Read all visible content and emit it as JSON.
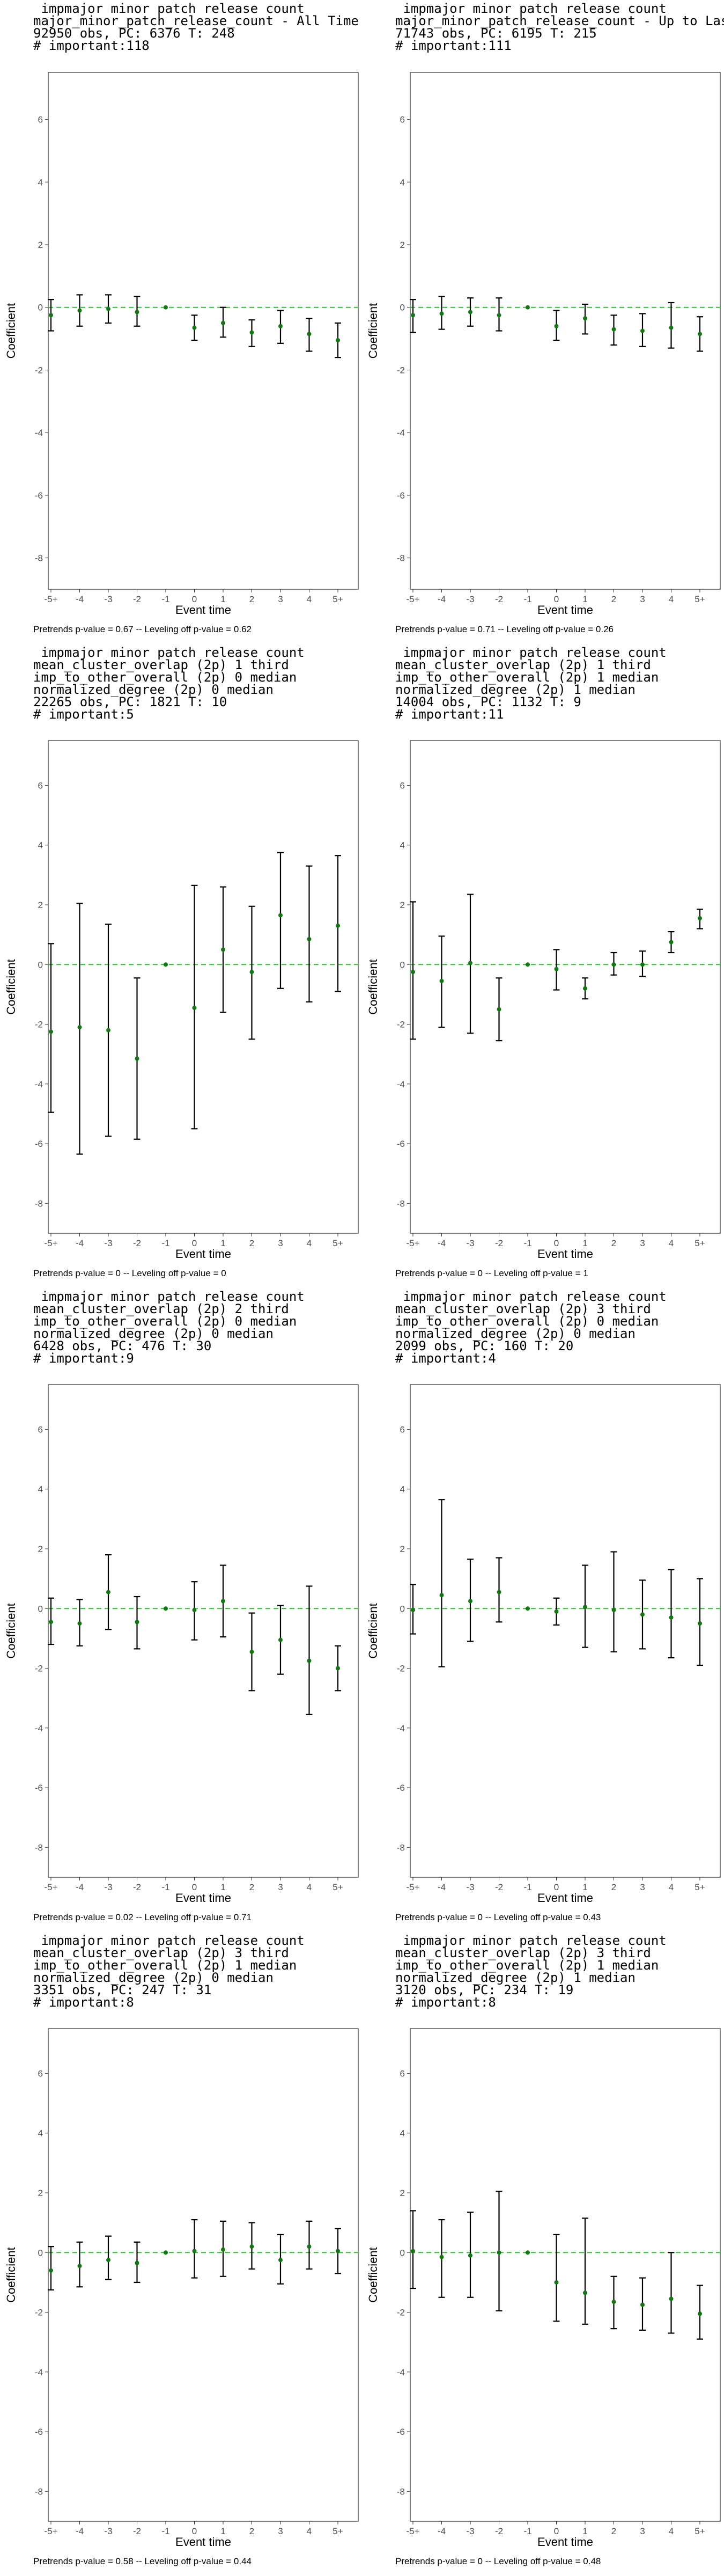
{
  "chart_data": [
    {
      "type": "scatter",
      "title_lines": [
        " impmajor minor patch release count",
        "major_minor_patch_release_count - All Time Periods",
        "92950 obs, PC: 6376 T: 248",
        "# important:118"
      ],
      "note": "Pretrends p-value = 0.67 -- Leveling off p-value = 0.62",
      "xlabel": "Event time",
      "ylabel": "Coefficient",
      "categories": [
        "-5+",
        "-4",
        "-3",
        "-2",
        "-1",
        "0",
        "1",
        "2",
        "3",
        "4",
        "5+"
      ],
      "ylim": [
        -9,
        7.5
      ],
      "yticks": [
        -8,
        -6,
        -4,
        -2,
        0,
        2,
        4,
        6
      ],
      "reference_line": 0,
      "estimates": [
        -0.25,
        -0.1,
        -0.05,
        -0.15,
        0,
        -0.65,
        -0.5,
        -0.8,
        -0.6,
        -0.85,
        -1.05
      ],
      "ci_lower": [
        -0.75,
        -0.6,
        -0.5,
        -0.6,
        0,
        -1.05,
        -0.95,
        -1.25,
        -1.15,
        -1.4,
        -1.6
      ],
      "ci_upper": [
        0.25,
        0.4,
        0.4,
        0.35,
        0,
        -0.25,
        0.0,
        -0.4,
        -0.1,
        -0.35,
        -0.5
      ]
    },
    {
      "type": "scatter",
      "title_lines": [
        " impmajor minor patch release count",
        "major_minor_patch_release_count - Up to Last Active Period",
        "71743 obs, PC: 6195 T: 215",
        "# important:111"
      ],
      "note": "Pretrends p-value = 0.71 -- Leveling off p-value = 0.26",
      "xlabel": "Event time",
      "ylabel": "Coefficient",
      "categories": [
        "-5+",
        "-4",
        "-3",
        "-2",
        "-1",
        "0",
        "1",
        "2",
        "3",
        "4",
        "5+"
      ],
      "ylim": [
        -9,
        7.5
      ],
      "yticks": [
        -8,
        -6,
        -4,
        -2,
        0,
        2,
        4,
        6
      ],
      "reference_line": 0,
      "estimates": [
        -0.25,
        -0.2,
        -0.15,
        -0.25,
        0,
        -0.6,
        -0.35,
        -0.7,
        -0.75,
        -0.65,
        -0.85
      ],
      "ci_lower": [
        -0.8,
        -0.7,
        -0.6,
        -0.75,
        0,
        -1.05,
        -0.85,
        -1.2,
        -1.25,
        -1.3,
        -1.4
      ],
      "ci_upper": [
        0.25,
        0.35,
        0.3,
        0.3,
        0,
        -0.1,
        0.1,
        -0.25,
        -0.2,
        0.15,
        -0.3
      ]
    },
    {
      "type": "scatter",
      "title_lines": [
        " impmajor minor patch release count",
        "mean_cluster_overlap (2p) 1 third",
        "imp_to_other_overall (2p) 0 median",
        "normalized_degree (2p) 0 median",
        "22265 obs, PC: 1821 T: 10",
        "# important:5"
      ],
      "note": "Pretrends p-value = 0 -- Leveling off p-value = 0",
      "xlabel": "Event time",
      "ylabel": "Coefficient",
      "categories": [
        "-5+",
        "-4",
        "-3",
        "-2",
        "-1",
        "0",
        "1",
        "2",
        "3",
        "4",
        "5+"
      ],
      "ylim": [
        -9,
        7.5
      ],
      "yticks": [
        -8,
        -6,
        -4,
        -2,
        0,
        2,
        4,
        6
      ],
      "reference_line": 0,
      "estimates": [
        -2.25,
        -2.1,
        -2.2,
        -3.15,
        0,
        -1.45,
        0.5,
        -0.25,
        1.65,
        0.85,
        1.3
      ],
      "ci_lower": [
        -4.95,
        -6.35,
        -5.75,
        -5.85,
        0,
        -5.5,
        -1.6,
        -2.5,
        -0.8,
        -1.25,
        -0.9
      ],
      "ci_upper": [
        0.7,
        2.05,
        1.35,
        -0.45,
        0,
        2.65,
        2.6,
        1.95,
        3.75,
        3.3,
        3.65
      ]
    },
    {
      "type": "scatter",
      "title_lines": [
        " impmajor minor patch release count",
        "mean_cluster_overlap (2p) 1 third",
        "imp_to_other_overall (2p) 1 median",
        "normalized_degree (2p) 1 median",
        "14004 obs, PC: 1132 T: 9",
        "# important:11"
      ],
      "note": "Pretrends p-value = 0 -- Leveling off p-value = 1",
      "xlabel": "Event time",
      "ylabel": "Coefficient",
      "categories": [
        "-5+",
        "-4",
        "-3",
        "-2",
        "-1",
        "0",
        "1",
        "2",
        "3",
        "4",
        "5+"
      ],
      "ylim": [
        -9,
        7.5
      ],
      "yticks": [
        -8,
        -6,
        -4,
        -2,
        0,
        2,
        4,
        6
      ],
      "reference_line": 0,
      "estimates": [
        -0.25,
        -0.55,
        0.05,
        -1.5,
        0,
        -0.15,
        -0.8,
        0.0,
        0.0,
        0.75,
        1.55
      ],
      "ci_lower": [
        -2.5,
        -2.1,
        -2.3,
        -2.55,
        0,
        -0.85,
        -1.15,
        -0.35,
        -0.4,
        0.4,
        1.2
      ],
      "ci_upper": [
        2.1,
        0.95,
        2.35,
        -0.45,
        0,
        0.5,
        -0.45,
        0.4,
        0.45,
        1.1,
        1.85
      ]
    },
    {
      "type": "scatter",
      "title_lines": [
        " impmajor minor patch release count",
        "mean_cluster_overlap (2p) 2 third",
        "imp_to_other_overall (2p) 0 median",
        "normalized_degree (2p) 0 median",
        "6428 obs, PC: 476 T: 30",
        "# important:9"
      ],
      "note": "Pretrends p-value = 0.02 -- Leveling off p-value = 0.71",
      "xlabel": "Event time",
      "ylabel": "Coefficient",
      "categories": [
        "-5+",
        "-4",
        "-3",
        "-2",
        "-1",
        "0",
        "1",
        "2",
        "3",
        "4",
        "5+"
      ],
      "ylim": [
        -9,
        7.5
      ],
      "yticks": [
        -8,
        -6,
        -4,
        -2,
        0,
        2,
        4,
        6
      ],
      "reference_line": 0,
      "estimates": [
        -0.45,
        -0.5,
        0.55,
        -0.45,
        0,
        -0.05,
        0.25,
        -1.45,
        -1.05,
        -1.75,
        -2.0
      ],
      "ci_lower": [
        -1.2,
        -1.25,
        -0.7,
        -1.35,
        0,
        -1.05,
        -0.95,
        -2.75,
        -2.2,
        -3.55,
        -2.75
      ],
      "ci_upper": [
        0.35,
        0.3,
        1.8,
        0.4,
        0,
        0.9,
        1.45,
        -0.15,
        0.1,
        0.75,
        -1.25
      ]
    },
    {
      "type": "scatter",
      "title_lines": [
        " impmajor minor patch release count",
        "mean_cluster_overlap (2p) 3 third",
        "imp_to_other_overall (2p) 0 median",
        "normalized_degree (2p) 0 median",
        "2099 obs, PC: 160 T: 20",
        "# important:4"
      ],
      "note": "Pretrends p-value = 0 -- Leveling off p-value = 0.43",
      "xlabel": "Event time",
      "ylabel": "Coefficient",
      "categories": [
        "-5+",
        "-4",
        "-3",
        "-2",
        "-1",
        "0",
        "1",
        "2",
        "3",
        "4",
        "5+"
      ],
      "ylim": [
        -9,
        7.5
      ],
      "yticks": [
        -8,
        -6,
        -4,
        -2,
        0,
        2,
        4,
        6
      ],
      "reference_line": 0,
      "estimates": [
        -0.05,
        0.45,
        0.25,
        0.55,
        0,
        -0.1,
        0.05,
        -0.05,
        -0.2,
        -0.3,
        -0.5
      ],
      "ci_lower": [
        -0.85,
        -1.95,
        -1.1,
        -0.45,
        0,
        -0.55,
        -1.3,
        -1.45,
        -1.35,
        -1.65,
        -1.9
      ],
      "ci_upper": [
        0.8,
        3.65,
        1.65,
        1.7,
        0,
        0.35,
        1.45,
        1.9,
        0.95,
        1.3,
        1.0
      ]
    },
    {
      "type": "scatter",
      "title_lines": [
        " impmajor minor patch release count",
        "mean_cluster_overlap (2p) 3 third",
        "imp_to_other_overall (2p) 1 median",
        "normalized_degree (2p) 0 median",
        "3351 obs, PC: 247 T: 31",
        "# important:8"
      ],
      "note": "Pretrends p-value = 0.58 -- Leveling off p-value = 0.44",
      "xlabel": "Event time",
      "ylabel": "Coefficient",
      "categories": [
        "-5+",
        "-4",
        "-3",
        "-2",
        "-1",
        "0",
        "1",
        "2",
        "3",
        "4",
        "5+"
      ],
      "ylim": [
        -9,
        7.5
      ],
      "yticks": [
        -8,
        -6,
        -4,
        -2,
        0,
        2,
        4,
        6
      ],
      "reference_line": 0,
      "estimates": [
        -0.6,
        -0.45,
        -0.25,
        -0.35,
        0,
        0.05,
        0.1,
        0.2,
        -0.25,
        0.2,
        0.05
      ],
      "ci_lower": [
        -1.25,
        -1.15,
        -0.9,
        -1.0,
        0,
        -0.85,
        -0.8,
        -0.55,
        -1.05,
        -0.55,
        -0.7
      ],
      "ci_upper": [
        0.2,
        0.35,
        0.55,
        0.35,
        0,
        1.1,
        1.05,
        1.0,
        0.6,
        1.05,
        0.8
      ]
    },
    {
      "type": "scatter",
      "title_lines": [
        " impmajor minor patch release count",
        "mean_cluster_overlap (2p) 3 third",
        "imp_to_other_overall (2p) 1 median",
        "normalized_degree (2p) 1 median",
        "3120 obs, PC: 234 T: 19",
        "# important:8"
      ],
      "note": "Pretrends p-value = 0 -- Leveling off p-value = 0.48",
      "xlabel": "Event time",
      "ylabel": "Coefficient",
      "categories": [
        "-5+",
        "-4",
        "-3",
        "-2",
        "-1",
        "0",
        "1",
        "2",
        "3",
        "4",
        "5+"
      ],
      "ylim": [
        -9,
        7.5
      ],
      "yticks": [
        -8,
        -6,
        -4,
        -2,
        0,
        2,
        4,
        6
      ],
      "reference_line": 0,
      "estimates": [
        0.05,
        -0.15,
        -0.1,
        0.0,
        0,
        -1.0,
        -1.35,
        -1.65,
        -1.75,
        -1.55,
        -2.05
      ],
      "ci_lower": [
        -1.2,
        -1.5,
        -1.5,
        -1.95,
        0,
        -2.3,
        -2.4,
        -2.55,
        -2.6,
        -2.7,
        -2.9
      ],
      "ci_upper": [
        1.4,
        1.1,
        1.35,
        2.05,
        0,
        0.6,
        1.15,
        -0.8,
        -0.85,
        0.0,
        -1.1
      ]
    }
  ],
  "colors": {
    "reference_line": "#22cc22",
    "point": "#117711",
    "errorbar": "#000000",
    "panel_border": "#333333",
    "tick_label": "#4d4d4d"
  }
}
